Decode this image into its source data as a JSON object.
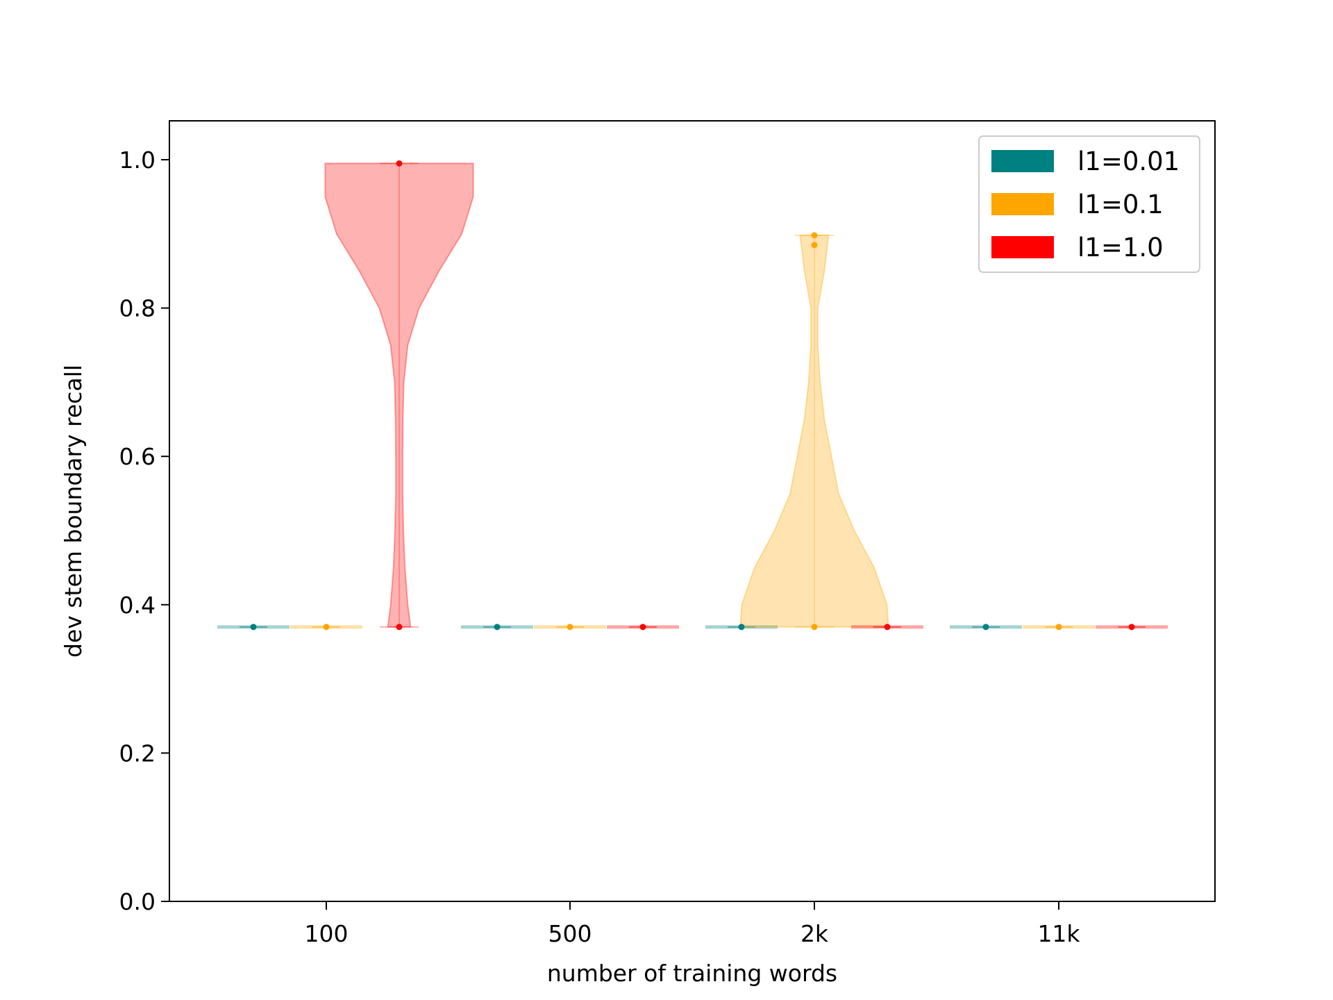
{
  "chart_data": {
    "type": "violin",
    "title": "",
    "xlabel": "number of training words",
    "ylabel": "dev stem boundary recall",
    "ylim": [
      0.0,
      1.05
    ],
    "yticks": [
      "0.0",
      "0.2",
      "0.4",
      "0.6",
      "0.8",
      "1.0"
    ],
    "categories": [
      "100",
      "500",
      "2k",
      "11k"
    ],
    "grid": false,
    "legend_position": "top-right",
    "series": [
      {
        "name": "l1=0.01",
        "color": "#008080",
        "offset": -1,
        "groups": [
          {
            "points": [
              0.37
            ],
            "range": [
              0.37,
              0.37
            ]
          },
          {
            "points": [
              0.37
            ],
            "range": [
              0.37,
              0.37
            ]
          },
          {
            "points": [
              0.37
            ],
            "range": [
              0.37,
              0.37
            ]
          },
          {
            "points": [
              0.37
            ],
            "range": [
              0.37,
              0.37
            ]
          }
        ]
      },
      {
        "name": "l1=0.1",
        "color": "#FFA500",
        "offset": 0,
        "groups": [
          {
            "points": [
              0.37
            ],
            "range": [
              0.37,
              0.37
            ]
          },
          {
            "points": [
              0.37
            ],
            "range": [
              0.37,
              0.37
            ]
          },
          {
            "points": [
              0.37,
              0.885,
              0.898
            ],
            "range": [
              0.37,
              0.898
            ],
            "density": [
              [
                0.37,
                0.26
              ],
              [
                0.4,
                0.255
              ],
              [
                0.45,
                0.21
              ],
              [
                0.5,
                0.14
              ],
              [
                0.55,
                0.085
              ],
              [
                0.6,
                0.06
              ],
              [
                0.65,
                0.035
              ],
              [
                0.7,
                0.02
              ],
              [
                0.75,
                0.012
              ],
              [
                0.8,
                0.012
              ],
              [
                0.85,
                0.035
              ],
              [
                0.898,
                0.05
              ]
            ]
          },
          {
            "points": [
              0.37
            ],
            "range": [
              0.37,
              0.37
            ]
          }
        ]
      },
      {
        "name": "l1=1.0",
        "color": "#FF0000",
        "offset": 1,
        "groups": [
          {
            "points": [
              0.37,
              0.995
            ],
            "range": [
              0.37,
              0.995
            ],
            "density": [
              [
                0.37,
                0.04
              ],
              [
                0.4,
                0.03
              ],
              [
                0.45,
                0.02
              ],
              [
                0.5,
                0.015
              ],
              [
                0.55,
                0.012
              ],
              [
                0.6,
                0.012
              ],
              [
                0.65,
                0.013
              ],
              [
                0.7,
                0.016
              ],
              [
                0.75,
                0.03
              ],
              [
                0.8,
                0.07
              ],
              [
                0.85,
                0.14
              ],
              [
                0.9,
                0.22
              ],
              [
                0.95,
                0.26
              ],
              [
                0.995,
                0.26
              ]
            ]
          },
          {
            "points": [
              0.37
            ],
            "range": [
              0.37,
              0.37
            ]
          },
          {
            "points": [
              0.37
            ],
            "range": [
              0.37,
              0.37
            ]
          },
          {
            "points": [
              0.37
            ],
            "range": [
              0.37,
              0.37
            ]
          }
        ]
      }
    ]
  }
}
